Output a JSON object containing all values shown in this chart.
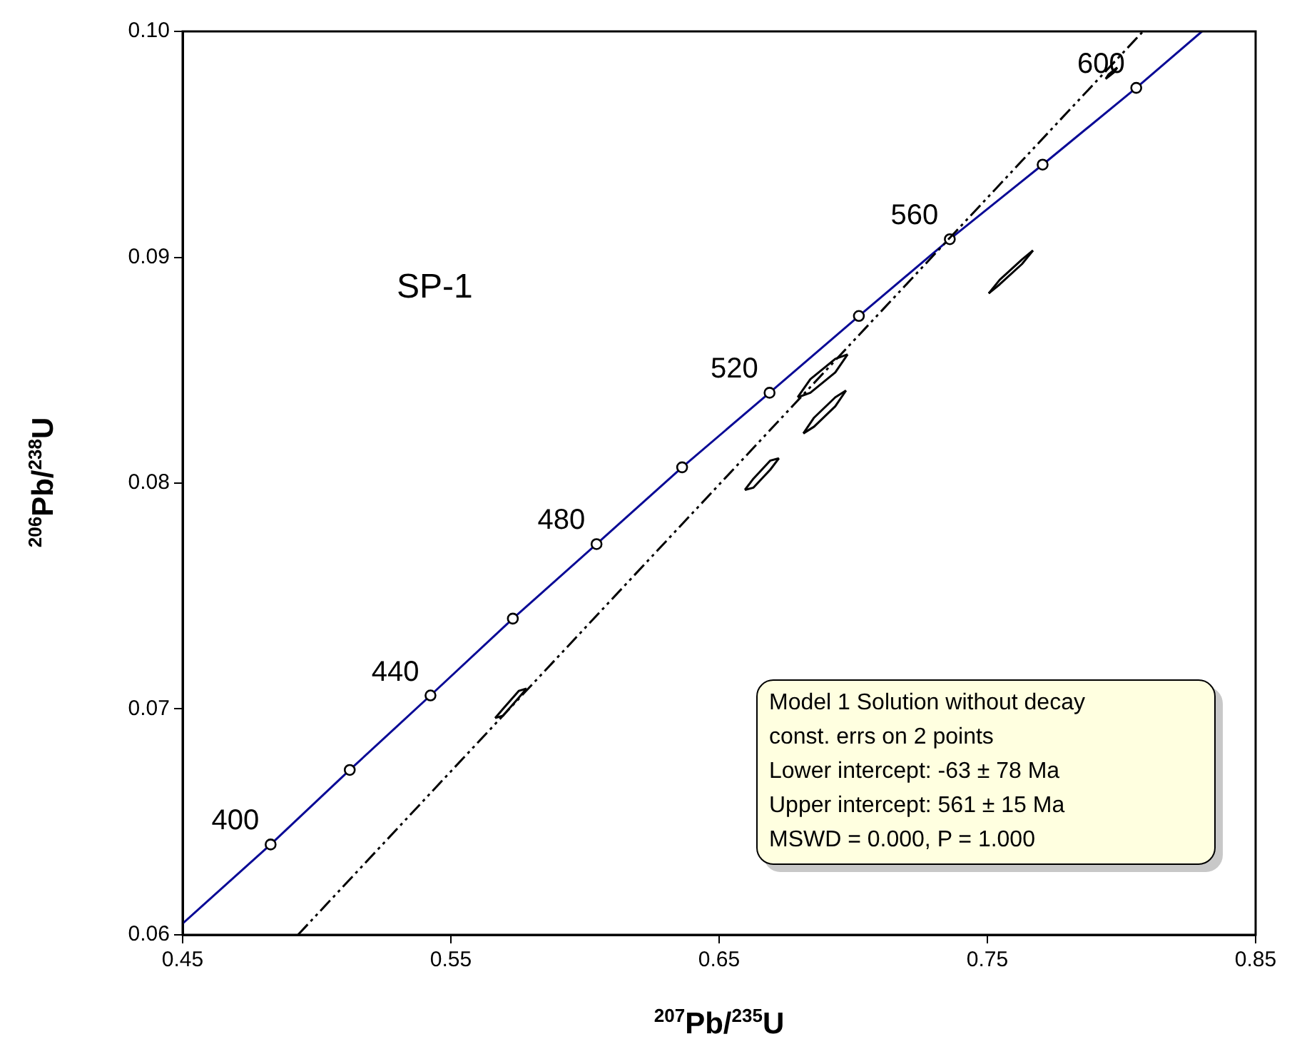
{
  "chart_data": {
    "type": "line",
    "xlabel": "$^{207}$Pb/$^{235}$U",
    "ylabel": "$^{206}$Pb/$^{238}$U",
    "xlim": [
      0.45,
      0.85
    ],
    "xticks": [
      0.45,
      0.55,
      0.65,
      0.75,
      0.85
    ],
    "ylim": [
      0.06,
      0.1
    ],
    "yticks": [
      0.06,
      0.07,
      0.08,
      0.09,
      {
        "value": 0.1,
        "label": "0.10"
      }
    ],
    "grid": false,
    "legend": false,
    "series": [
      {
        "color": "#0a0a96",
        "marker": "none",
        "line_style": "solid",
        "x": [
          0.45,
          0.4828,
          0.5123,
          0.5424,
          0.5731,
          0.6043,
          0.6362,
          0.6688,
          0.7021,
          0.736,
          0.7706,
          0.8055,
          0.83
        ],
        "values": [
          0.0605,
          0.064,
          0.0673,
          0.0706,
          0.074,
          0.0773,
          0.0807,
          0.084,
          0.0874,
          0.0908,
          0.0941,
          0.0975,
          0.1
        ]
      },
      {
        "type": "scatter",
        "color": "#000000",
        "marker": "circle",
        "x": [
          0.4828,
          0.5123,
          0.5424,
          0.5731,
          0.6043,
          0.6362,
          0.6688,
          0.7021,
          0.736,
          0.7706,
          0.8055
        ],
        "values": [
          0.064,
          0.0673,
          0.0706,
          0.074,
          0.0773,
          0.0807,
          0.084,
          0.0874,
          0.0908,
          0.0941,
          0.0975
        ]
      },
      {
        "color": "#000000",
        "marker": "none",
        "line_style": "dashed",
        "x": [
          0.493,
          0.808
        ],
        "values": [
          0.06,
          0.1
        ]
      },
      {
        "color": "#000000",
        "marker": "none",
        "line_style": "solid",
        "x": [
          0.5665,
          0.5694,
          0.5753,
          0.5782
        ],
        "values": [
          0.0696,
          0.07,
          0.0708,
          0.0709
        ]
      },
      {
        "color": "#000000",
        "marker": "none",
        "line_style": "solid",
        "x": [
          0.5665,
          0.5694,
          0.5753,
          0.5782
        ],
        "values": [
          0.0696,
          0.0697,
          0.0705,
          0.0709
        ]
      },
      {
        "color": "#000000",
        "marker": "none",
        "line_style": "solid",
        "x": [
          0.6596,
          0.6628,
          0.6691,
          0.6723
        ],
        "values": [
          0.0797,
          0.0802,
          0.081,
          0.0811
        ]
      },
      {
        "color": "#000000",
        "marker": "none",
        "line_style": "solid",
        "x": [
          0.6596,
          0.6628,
          0.6691,
          0.6723
        ],
        "values": [
          0.0797,
          0.0798,
          0.0806,
          0.0811
        ]
      },
      {
        "color": "#000000",
        "marker": "none",
        "line_style": "solid",
        "x": [
          0.6793,
          0.684,
          0.6933,
          0.6979
        ],
        "values": [
          0.0838,
          0.0846,
          0.0855,
          0.0857
        ]
      },
      {
        "color": "#000000",
        "marker": "none",
        "line_style": "solid",
        "x": [
          0.6793,
          0.684,
          0.6933,
          0.6979
        ],
        "values": [
          0.0838,
          0.084,
          0.0849,
          0.0857
        ]
      },
      {
        "color": "#000000",
        "marker": "none",
        "line_style": "solid",
        "x": [
          0.6814,
          0.6854,
          0.6933,
          0.6973
        ],
        "values": [
          0.0822,
          0.0829,
          0.0838,
          0.0841
        ]
      },
      {
        "color": "#000000",
        "marker": "none",
        "line_style": "solid",
        "x": [
          0.6814,
          0.6854,
          0.6933,
          0.6973
        ],
        "values": [
          0.0822,
          0.0825,
          0.0834,
          0.0841
        ]
      },
      {
        "color": "#000000",
        "marker": "none",
        "line_style": "solid",
        "x": [
          0.7505,
          0.7546,
          0.7629,
          0.767
        ],
        "values": [
          0.0884,
          0.089,
          0.0899,
          0.0903
        ]
      },
      {
        "color": "#000000",
        "marker": "none",
        "line_style": "solid",
        "x": [
          0.7505,
          0.7546,
          0.7629,
          0.767
        ],
        "values": [
          0.0884,
          0.0888,
          0.0897,
          0.0903
        ]
      },
      {
        "color": "#000000",
        "marker": "none",
        "line_style": "solid",
        "x": [
          0.7941,
          0.7952,
          0.7973,
          0.7984
        ],
        "values": [
          0.0979,
          0.0981,
          0.0983,
          0.0984
        ]
      },
      {
        "color": "#000000",
        "marker": "none",
        "line_style": "solid",
        "x": [
          0.7941,
          0.7952,
          0.7973,
          0.7984
        ],
        "values": [
          0.0979,
          0.098,
          0.0982,
          0.0984
        ]
      }
    ],
    "annotations": [
      {
        "text": "400",
        "x": 0.4828,
        "y": 0.064
      },
      {
        "text": "440",
        "x": 0.5424,
        "y": 0.0706
      },
      {
        "text": "480",
        "x": 0.6043,
        "y": 0.0773
      },
      {
        "text": "520",
        "x": 0.6688,
        "y": 0.084
      },
      {
        "text": "560",
        "x": 0.736,
        "y": 0.0908
      },
      {
        "text": "600",
        "x": 0.8055,
        "y": 0.0975
      },
      "SP-1",
      "Model 1 Solution without decay",
      "const. errs on 2 points",
      "Lower intercept: -63 ± 78 Ma",
      "Upper intercept: 561 ± 15 Ma",
      "MSWD = 0.000, P = 1.000"
    ]
  }
}
